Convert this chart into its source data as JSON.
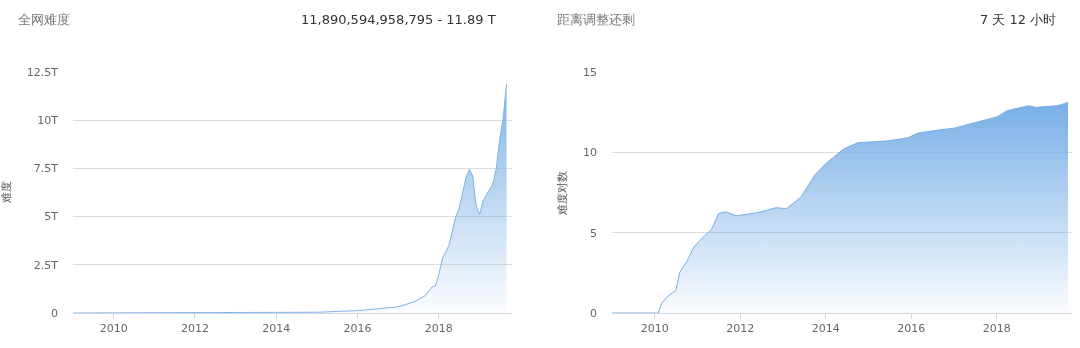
{
  "chart_data": [
    {
      "type": "area",
      "title": "全网难度",
      "annotations": [
        "11,890,594,958,795 - 11.89 T"
      ],
      "ylabel": "难度",
      "grid": "y",
      "color": "#7fb3e6",
      "x": [
        "2009-01-03",
        "2015-01",
        "2016-01",
        "2016-07",
        "2017-01",
        "2017-06",
        "2017-09",
        "2017-11",
        "2017-12",
        "2018-01",
        "2018-02",
        "2018-04",
        "2018-05",
        "2018-06",
        "2018-07",
        "2018-08",
        "2018-09",
        "2018-10",
        "2018-11",
        "2018-12",
        "2019-01",
        "2019-02",
        "2019-03",
        "2019-04",
        "2019-05",
        "2019-06",
        "2019-07",
        "2019-08",
        "2019-09"
      ],
      "values": [
        0,
        0.04,
        0.12,
        0.22,
        0.32,
        0.6,
        0.9,
        1.35,
        1.4,
        2.0,
        2.8,
        3.5,
        4.2,
        5.0,
        5.4,
        6.2,
        7.0,
        7.45,
        7.1,
        5.6,
        5.1,
        5.8,
        6.1,
        6.4,
        6.7,
        7.5,
        9.0,
        10.1,
        11.89
      ],
      "xlim": [
        "2009-01-01",
        "2019-10-20"
      ],
      "ylim": [
        0,
        12.5
      ],
      "xticks": [
        {
          "value": "2010-01-01",
          "label": "2010"
        },
        {
          "value": "2012-01-01",
          "label": "2012"
        },
        {
          "value": "2014-01-01",
          "label": "2014"
        },
        {
          "value": "2016-01-01",
          "label": "2016"
        },
        {
          "value": "2018-01-01",
          "label": "2018"
        }
      ],
      "yticks": [
        0,
        {
          "value": 2.5,
          "label": "2.5T"
        },
        {
          "value": 5,
          "label": "5T"
        },
        {
          "value": 7.5,
          "label": "7.5T"
        },
        {
          "value": 10,
          "label": "10T"
        },
        {
          "value": 12.5,
          "label": "12.5T"
        }
      ]
    },
    {
      "type": "area",
      "title": "距离调整还剩",
      "annotations": [
        "7 天 12 小时"
      ],
      "ylabel": "难度对数",
      "grid": "y",
      "color": "#78aee6",
      "x": [
        "2009-01-03",
        "2010-01",
        "2010-02",
        "2010-03",
        "2010-05",
        "2010-07",
        "2010-08",
        "2010-10",
        "2010-12",
        "2011-03",
        "2011-05",
        "2011-07",
        "2011-09",
        "2011-12",
        "2012-06",
        "2012-11",
        "2013-02",
        "2013-06",
        "2013-10",
        "2014-01",
        "2014-06",
        "2014-10",
        "2015-06",
        "2015-12",
        "2016-03",
        "2016-09",
        "2017-01",
        "2017-06",
        "2018-01",
        "2018-04",
        "2018-10",
        "2018-12",
        "2019-06",
        "2019-09"
      ],
      "values": [
        0,
        0,
        0,
        0.6,
        1.1,
        1.4,
        2.5,
        3.2,
        4.1,
        4.8,
        5.2,
        6.2,
        6.3,
        6.05,
        6.25,
        6.55,
        6.5,
        7.2,
        8.6,
        9.3,
        10.2,
        10.6,
        10.7,
        10.9,
        11.2,
        11.4,
        11.5,
        11.8,
        12.2,
        12.6,
        12.9,
        12.8,
        12.9,
        13.1
      ],
      "xlim": [
        "2009-01-01",
        "2019-10-05"
      ],
      "ylim": [
        0,
        15
      ],
      "xticks": [
        {
          "value": "2010-01-01",
          "label": "2010"
        },
        {
          "value": "2012-01-01",
          "label": "2012"
        },
        {
          "value": "2014-01-01",
          "label": "2014"
        },
        {
          "value": "2016-01-01",
          "label": "2016"
        },
        {
          "value": "2018-01-01",
          "label": "2018"
        }
      ],
      "yticks": [
        0,
        5,
        10,
        15
      ]
    }
  ]
}
